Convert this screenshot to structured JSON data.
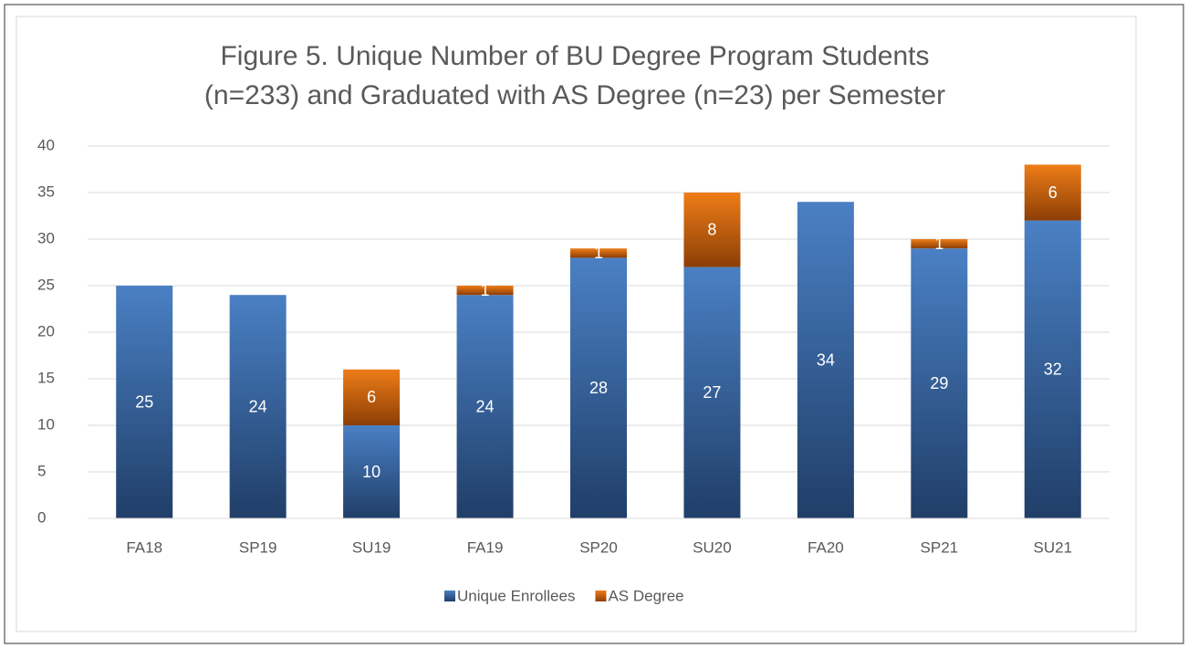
{
  "chart_data": {
    "type": "stacked_bar",
    "title": [
      "Figure 5. Unique Number of BU Degree Program Students",
      "(n=233) and Graduated with AS Degree (n=23) per Semester"
    ],
    "categories": [
      "FA18",
      "SP19",
      "SU19",
      "FA19",
      "SP20",
      "SU20",
      "FA20",
      "SP21",
      "SU21"
    ],
    "series": [
      {
        "name": "Unique Enrollees",
        "color": "#4a7fc1",
        "values": [
          25,
          24,
          10,
          24,
          28,
          27,
          34,
          29,
          32
        ]
      },
      {
        "name": "AS Degree",
        "color": "#e8781a",
        "values": [
          null,
          null,
          6,
          1,
          1,
          8,
          null,
          1,
          6
        ]
      }
    ],
    "ylim": [
      0,
      40
    ],
    "yticks": [
      0,
      5,
      10,
      15,
      20,
      25,
      30,
      35,
      40
    ],
    "grid": true,
    "legend": "bottom"
  }
}
